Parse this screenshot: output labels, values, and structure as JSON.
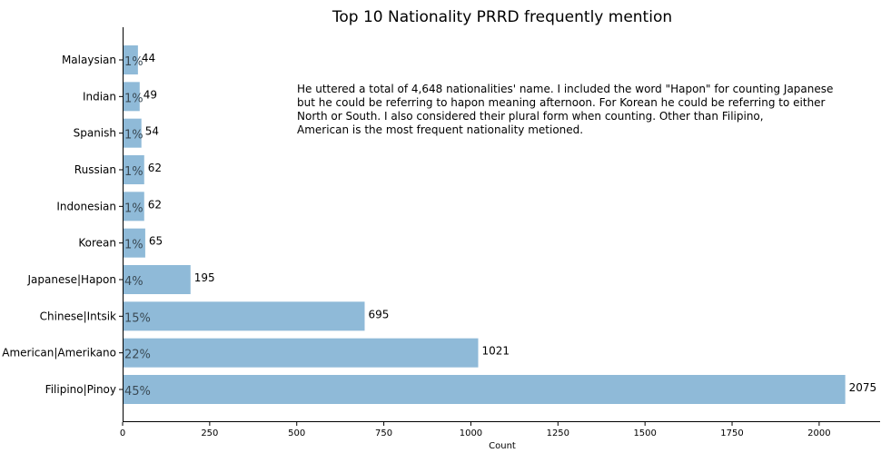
{
  "chart_data": {
    "type": "bar",
    "orientation": "horizontal",
    "title": "Top 10 Nationality PRRD frequently mention",
    "xlabel": "Count",
    "ylabel": "",
    "xlim": [
      0,
      2175
    ],
    "xticks": [
      0,
      250,
      500,
      750,
      1000,
      1250,
      1500,
      1750,
      2000
    ],
    "grid": false,
    "bar_color": "#8fbad8",
    "categories": [
      "Malaysian",
      "Indian",
      "Spanish",
      "Russian",
      "Indonesian",
      "Korean",
      "Japanese|Hapon",
      "Chinese|Intsik",
      "American|Amerikano",
      "Filipino|Pinoy"
    ],
    "values": [
      44,
      49,
      54,
      62,
      62,
      65,
      195,
      695,
      1021,
      2075
    ],
    "percent_labels": [
      "1%",
      "1%",
      "1%",
      "1%",
      "1%",
      "1%",
      "4%",
      "15%",
      "22%",
      "45%"
    ],
    "annotation": [
      "He uttered a total of 4,648 nationalities' name. I included the word \"Hapon\" for counting Japanese",
      "but he could be referring to hapon  meaning afternoon. For Korean he could be referring to either",
      "North or South. I also considered their plural form when counting. Other than Filipino,",
      "American is the most frequent nationality metioned."
    ]
  }
}
